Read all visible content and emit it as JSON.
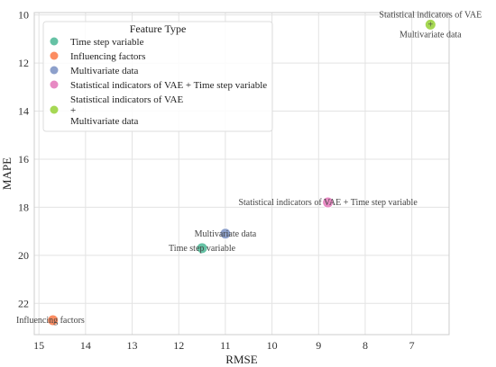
{
  "chart_data": {
    "type": "scatter",
    "xlabel": "RMSE",
    "ylabel": "MAPE",
    "xlim": [
      15.1,
      6.2
    ],
    "ylim": [
      9.9,
      23.3
    ],
    "x_inverted": true,
    "y_inverted": true,
    "x_ticks": [
      15,
      14,
      13,
      12,
      11,
      10,
      9,
      8,
      7
    ],
    "y_ticks": [
      10,
      12,
      14,
      16,
      18,
      20,
      22
    ],
    "grid": true,
    "legend": {
      "title": "Feature Type",
      "placement": "top-left"
    },
    "series": [
      {
        "name": "Time step variable",
        "color": "#66c2a5",
        "points": [
          {
            "x": 11.5,
            "y": 19.7,
            "label": "Time step variable"
          }
        ]
      },
      {
        "name": "Influencing factors",
        "color": "#fc8d62",
        "points": [
          {
            "x": 14.7,
            "y": 22.7,
            "label": "Influencing factors"
          }
        ]
      },
      {
        "name": "Multivariate data",
        "color": "#8da0cb",
        "points": [
          {
            "x": 11.0,
            "y": 19.1,
            "label": "Multivariate data"
          }
        ]
      },
      {
        "name": "Statistical indicators of VAE + Time step variable",
        "color": "#e78ac3",
        "points": [
          {
            "x": 8.8,
            "y": 17.8,
            "label": "Statistical indicators of VAE + Time step variable"
          }
        ]
      },
      {
        "name": "Statistical indicators of VAE\n+\nMultivariate data",
        "color": "#a6d854",
        "points": [
          {
            "x": 6.6,
            "y": 10.4,
            "label": "Statistical indicators of VAE\n+\nMultivariate data"
          }
        ]
      }
    ]
  }
}
